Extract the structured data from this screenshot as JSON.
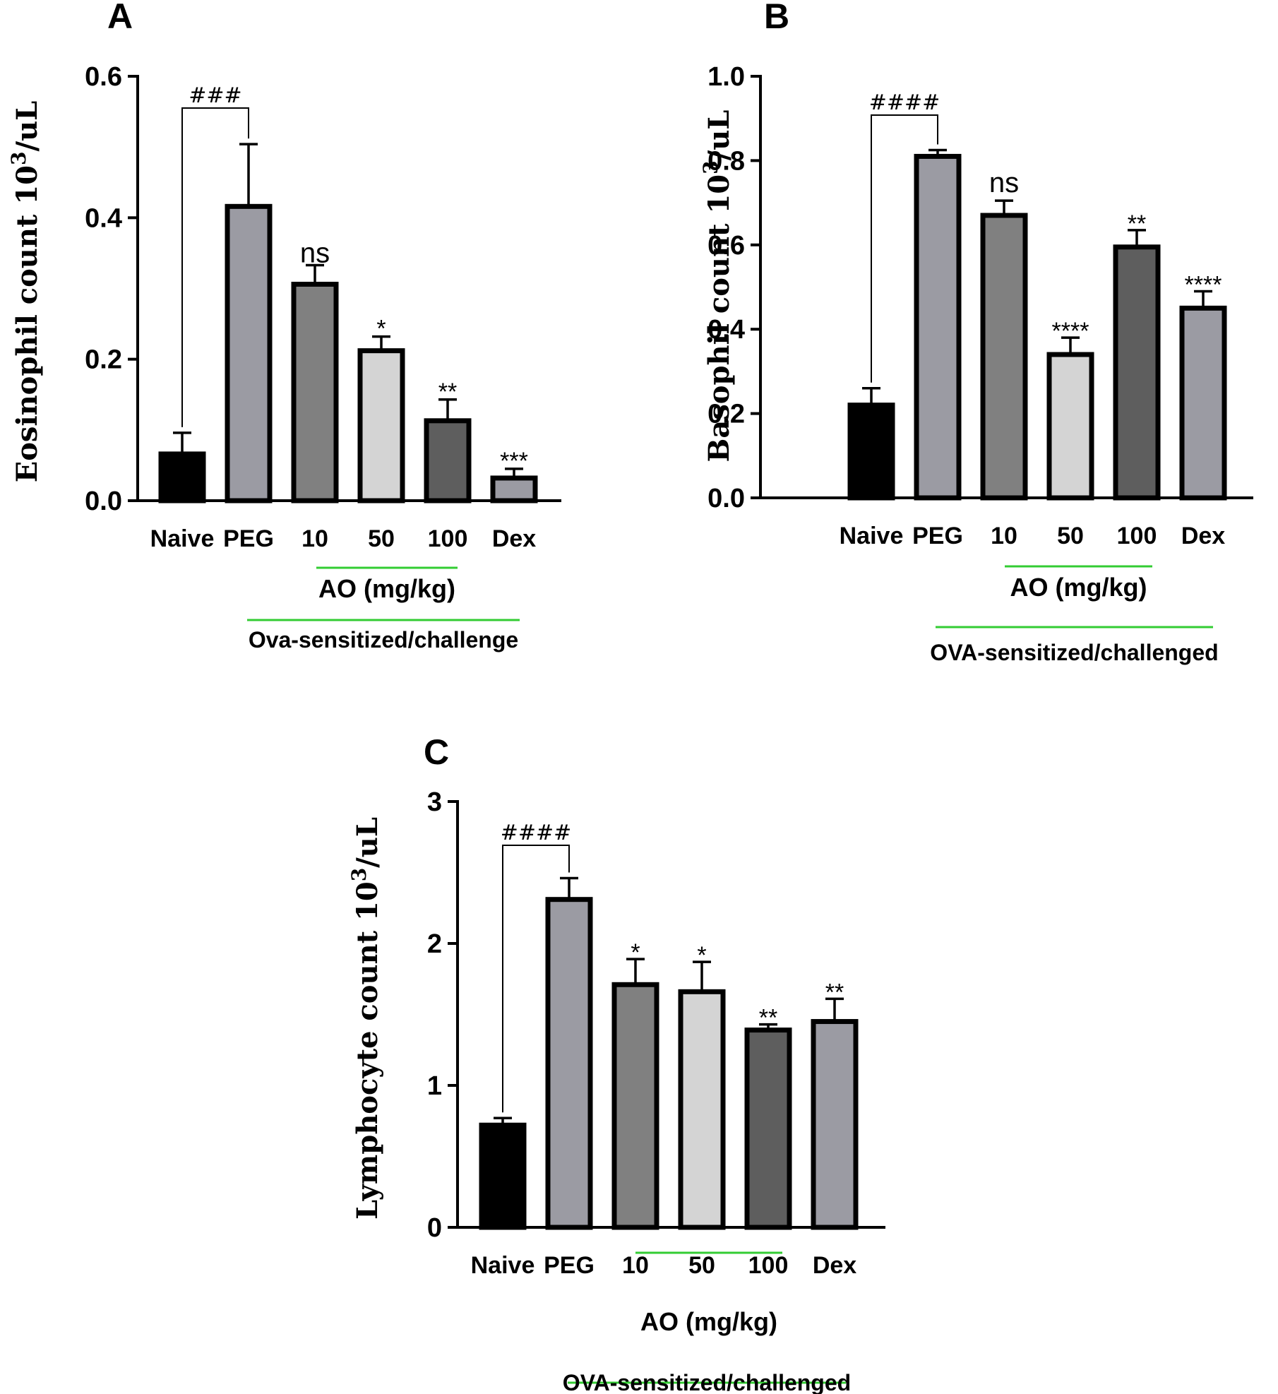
{
  "chart_data": [
    {
      "type": "bar",
      "panel": "A",
      "categories": [
        "Naive",
        "PEG",
        "10",
        "50",
        "100",
        "Dex"
      ],
      "values": [
        0.066,
        0.416,
        0.306,
        0.212,
        0.113,
        0.032
      ],
      "errors": [
        0.03,
        0.088,
        0.027,
        0.02,
        0.03,
        0.013
      ],
      "colors": [
        "#000000",
        "#9b9ba3",
        "#808080",
        "#d4d4d4",
        "#5e5e5e",
        "#9b9ba3"
      ],
      "significance": [
        "",
        "",
        "ns",
        "*",
        "**",
        "***"
      ],
      "comparison": {
        "from": "Naive",
        "to": "PEG",
        "label": "###"
      },
      "ylabel": "Eosinophil count 10",
      "ylabel_sup": "3",
      "ylabel_suffix": "/uL",
      "ylim": [
        0,
        0.6
      ],
      "yticks": [
        0.0,
        0.2,
        0.4,
        0.6
      ],
      "ytick_labels": [
        "0.0",
        "0.2",
        "0.4",
        "0.6"
      ],
      "group_label": "AO (mg/kg)",
      "outer_label": "Ova-sensitized/challenge"
    },
    {
      "type": "bar",
      "panel": "B",
      "categories": [
        "Naive",
        "PEG",
        "10",
        "50",
        "100",
        "Dex"
      ],
      "values": [
        0.22,
        0.81,
        0.67,
        0.34,
        0.595,
        0.45
      ],
      "errors": [
        0.04,
        0.015,
        0.035,
        0.04,
        0.04,
        0.04
      ],
      "colors": [
        "#000000",
        "#9b9ba3",
        "#808080",
        "#d4d4d4",
        "#5e5e5e",
        "#9b9ba3"
      ],
      "significance": [
        "",
        "",
        "ns",
        "****",
        "**",
        "****"
      ],
      "comparison": {
        "from": "Naive",
        "to": "PEG",
        "label": "####"
      },
      "ylabel": "Basophil count 10",
      "ylabel_sup": "3",
      "ylabel_suffix": "/uL",
      "ylim": [
        0,
        1.0
      ],
      "yticks": [
        0.0,
        0.2,
        0.4,
        0.6,
        0.8,
        1.0
      ],
      "ytick_labels": [
        "0.0",
        "0.2",
        "0.4",
        "0.6",
        "0.8",
        "1.0"
      ],
      "group_label": "AO (mg/kg)",
      "outer_label": "OVA-sensitized/challenged"
    },
    {
      "type": "bar",
      "panel": "C",
      "categories": [
        "Naive",
        "PEG",
        "10",
        "50",
        "100",
        "Dex"
      ],
      "values": [
        0.72,
        2.31,
        1.71,
        1.66,
        1.39,
        1.45
      ],
      "errors": [
        0.05,
        0.15,
        0.18,
        0.21,
        0.04,
        0.16
      ],
      "colors": [
        "#000000",
        "#9b9ba3",
        "#808080",
        "#d4d4d4",
        "#5e5e5e",
        "#9b9ba3"
      ],
      "significance": [
        "",
        "",
        "*",
        "*",
        "**",
        "**"
      ],
      "comparison": {
        "from": "Naive",
        "to": "PEG",
        "label": "####"
      },
      "ylabel": "Lymphocyte count 10",
      "ylabel_sup": "3",
      "ylabel_suffix": "/uL",
      "ylim": [
        0,
        3
      ],
      "yticks": [
        0,
        1,
        2,
        3
      ],
      "ytick_labels": [
        "0",
        "1",
        "2",
        "3"
      ],
      "group_label": "AO (mg/kg)",
      "outer_label": "OVA-sensitized/challenged"
    }
  ],
  "colors": {
    "accent_line": "#33cc33",
    "axis": "#000000"
  }
}
